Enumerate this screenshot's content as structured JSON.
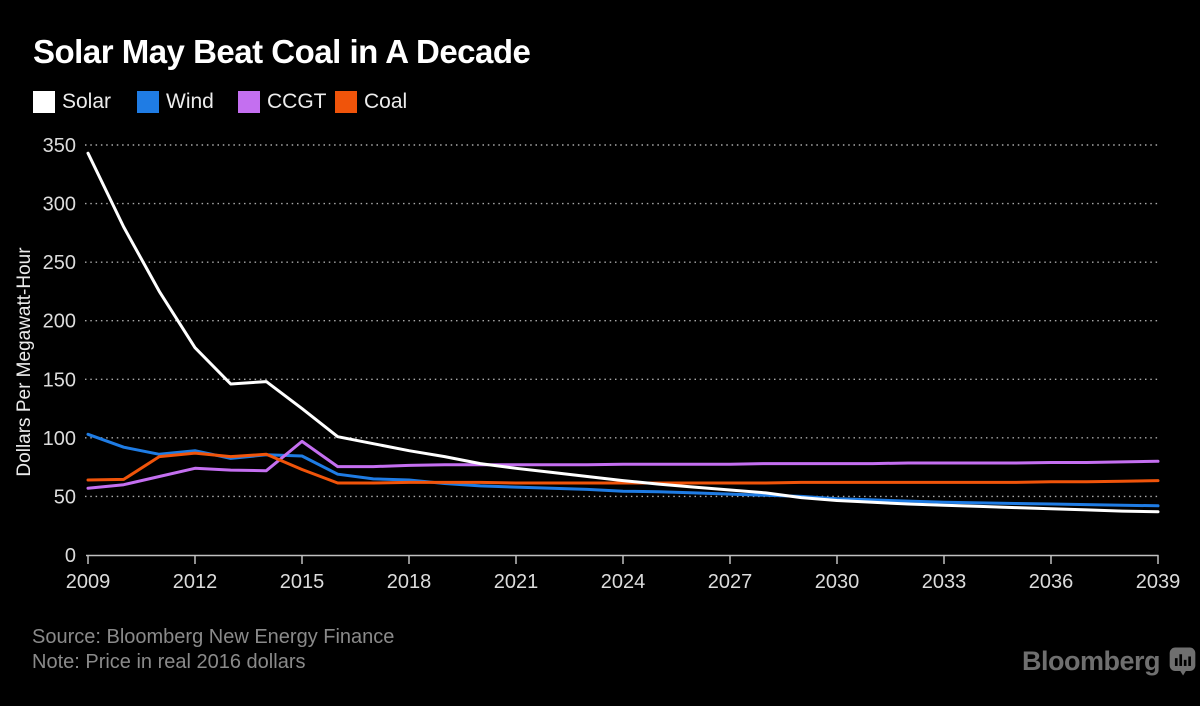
{
  "title": "Solar May Beat Coal in A Decade",
  "footer": {
    "source": "Source: Bloomberg New Energy Finance",
    "note": "Note: Price in real 2016 dollars"
  },
  "branding": {
    "logo_text": "Bloomberg",
    "logo_icon": "bar-chart-bubble-icon"
  },
  "colors": {
    "background": "#000000",
    "title_text": "#ffffff",
    "tick_text": "#dcdcdc",
    "axis_line": "#c0c0c0",
    "gridline": "#a9a9a9",
    "legend_text": "#ececec",
    "footer_text": "#8a8a8a",
    "logo": "#6f6f6f"
  },
  "chart_data": {
    "type": "line",
    "title": "Solar May Beat Coal in A Decade",
    "xlabel": "",
    "ylabel": "Dollars Per Megawatt-Hour",
    "ylim": [
      0,
      350
    ],
    "y_ticks": [
      0,
      50,
      100,
      150,
      200,
      250,
      300,
      350
    ],
    "x_tick_labels": [
      2009,
      2012,
      2015,
      2018,
      2021,
      2024,
      2027,
      2030,
      2033,
      2036,
      2039
    ],
    "grid": "horizontal-dotted",
    "legend_position": "top-left",
    "x": [
      2009,
      2010,
      2011,
      2012,
      2013,
      2014,
      2015,
      2016,
      2017,
      2018,
      2019,
      2020,
      2021,
      2022,
      2023,
      2024,
      2025,
      2026,
      2027,
      2028,
      2029,
      2030,
      2031,
      2032,
      2033,
      2034,
      2035,
      2036,
      2037,
      2038,
      2039
    ],
    "series": [
      {
        "name": "Solar",
        "color": "#ffffff",
        "values": [
          343,
          280,
          225,
          177,
          146,
          148,
          125,
          101,
          95,
          89,
          84,
          78,
          74,
          70.5,
          67,
          63.5,
          60.5,
          58,
          55.5,
          53,
          49,
          46.5,
          45,
          43.5,
          42.5,
          41.5,
          40.5,
          39.5,
          38.5,
          37.5,
          37
        ]
      },
      {
        "name": "Wind",
        "color": "#1f7ce4",
        "values": [
          103,
          92,
          86,
          89,
          82.5,
          85.5,
          84.5,
          69,
          65,
          64,
          61,
          59,
          58,
          57,
          56,
          54.5,
          54,
          53,
          52,
          51,
          50,
          48,
          47,
          46,
          45,
          44.5,
          44,
          43.5,
          43,
          42.5,
          42
        ]
      },
      {
        "name": "CCGT",
        "color": "#c46ff0",
        "values": [
          57,
          60,
          67,
          74,
          72.5,
          72,
          97,
          75.5,
          75.5,
          76.5,
          77,
          77,
          77,
          77,
          77,
          77.5,
          77.5,
          77.5,
          77.5,
          78,
          78,
          78,
          78,
          78.5,
          78.5,
          78.5,
          78.5,
          79,
          79,
          79.5,
          80
        ]
      },
      {
        "name": "Coal",
        "color": "#f0540a",
        "values": [
          64,
          64.5,
          84,
          87,
          84,
          86,
          73,
          61.5,
          61.5,
          62,
          62,
          62,
          61.5,
          61.5,
          61.5,
          61.5,
          61.5,
          61.5,
          61.5,
          61.5,
          62,
          62,
          62,
          62,
          62,
          62,
          62,
          62.5,
          62.5,
          63,
          63.5
        ]
      }
    ]
  }
}
